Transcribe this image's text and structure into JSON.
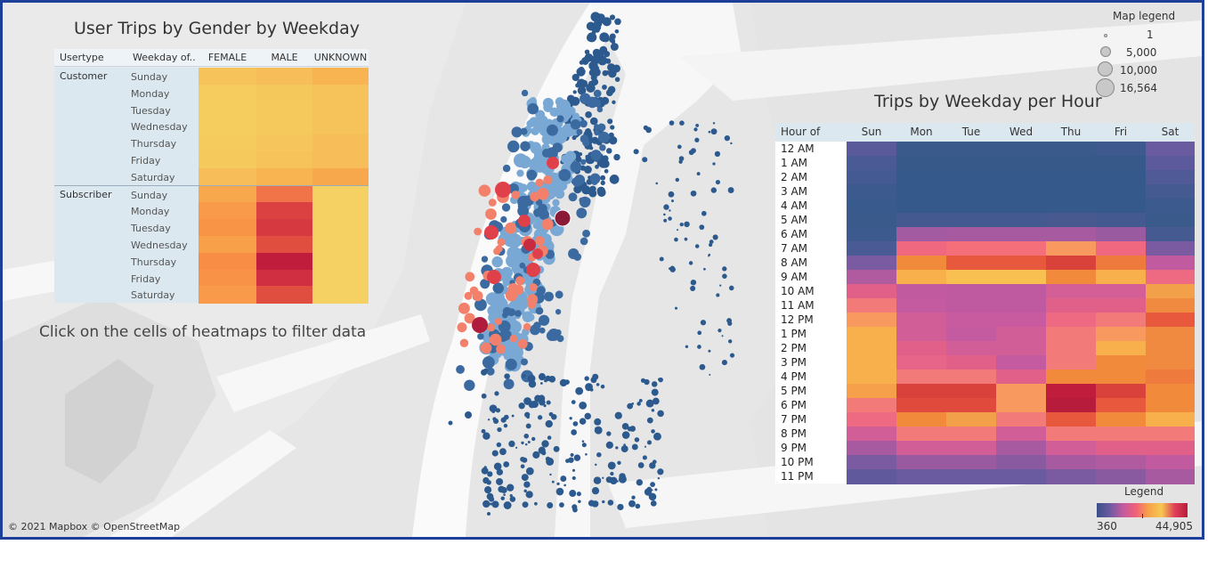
{
  "dashboard": {
    "gender_title": "User Trips by Gender by Weekday",
    "hour_title": "Trips by Weekday per Hour",
    "hint": "Click on the cells of heatmaps to filter data",
    "attribution": "© 2021 Mapbox © OpenStreetMap"
  },
  "gender_table": {
    "headers": [
      "Usertype",
      "Weekday of..",
      "FEMALE",
      "MALE",
      "UNKNOWN"
    ],
    "groups": [
      {
        "usertype": "Customer",
        "rows": [
          {
            "day": "Sunday",
            "colors": [
              "#f6c35a",
              "#f6bd58",
              "#f7b451"
            ]
          },
          {
            "day": "Monday",
            "colors": [
              "#f5cc5d",
              "#f5c85c",
              "#f6c35a"
            ]
          },
          {
            "day": "Tuesday",
            "colors": [
              "#f5cd5e",
              "#f5c95c",
              "#f6c35a"
            ]
          },
          {
            "day": "Wednesday",
            "colors": [
              "#f5cd5e",
              "#f5c95c",
              "#f6c35a"
            ]
          },
          {
            "day": "Thursday",
            "colors": [
              "#f5cb5d",
              "#f6c55b",
              "#f6bd58"
            ]
          },
          {
            "day": "Friday",
            "colors": [
              "#f5c95c",
              "#f6c35a",
              "#f6bd58"
            ]
          },
          {
            "day": "Saturday",
            "colors": [
              "#f6bd58",
              "#f7b451",
              "#f7a84d"
            ]
          }
        ]
      },
      {
        "usertype": "Subscriber",
        "rows": [
          {
            "day": "Sunday",
            "colors": [
              "#f7a84d",
              "#f07448",
              "#f5d062"
            ]
          },
          {
            "day": "Monday",
            "colors": [
              "#f89a4a",
              "#db4141",
              "#f5d062"
            ]
          },
          {
            "day": "Tuesday",
            "colors": [
              "#f89446",
              "#d63a40",
              "#f5d062"
            ]
          },
          {
            "day": "Wednesday",
            "colors": [
              "#f8a049",
              "#e04e40",
              "#f5d062"
            ]
          },
          {
            "day": "Thursday",
            "colors": [
              "#f88d46",
              "#c01c3c",
              "#f5d062"
            ]
          },
          {
            "day": "Friday",
            "colors": [
              "#f89246",
              "#cf2f40",
              "#f5d062"
            ]
          },
          {
            "day": "Saturday",
            "colors": [
              "#f89a4a",
              "#e04e40",
              "#f5d062"
            ]
          }
        ]
      }
    ]
  },
  "hour_table": {
    "headers": [
      "Hour of Sta..",
      "Sun",
      "Mon",
      "Tue",
      "Wed",
      "Thu",
      "Fri",
      "Sat"
    ],
    "rows": [
      {
        "hour": "12 AM",
        "colors": [
          "#5a5a9a",
          "#3a5a8c",
          "#3a5a8c",
          "#3a5a8c",
          "#3a5a8c",
          "#3d598e",
          "#6a5aa0"
        ]
      },
      {
        "hour": "1 AM",
        "colors": [
          "#4a5a94",
          "#36598a",
          "#36598a",
          "#36598a",
          "#36598a",
          "#36598a",
          "#5c5a9c"
        ]
      },
      {
        "hour": "2 AM",
        "colors": [
          "#445a92",
          "#35598a",
          "#35598a",
          "#35598a",
          "#35598a",
          "#35598a",
          "#505a96"
        ]
      },
      {
        "hour": "3 AM",
        "colors": [
          "#3d5a8e",
          "#35598a",
          "#35598a",
          "#35598a",
          "#35598a",
          "#35598a",
          "#465a92"
        ]
      },
      {
        "hour": "4 AM",
        "colors": [
          "#385a8c",
          "#35598a",
          "#35598a",
          "#35598a",
          "#35598a",
          "#35598a",
          "#3d5a8e"
        ]
      },
      {
        "hour": "5 AM",
        "colors": [
          "#3a5a8c",
          "#44598f",
          "#44598f",
          "#44598f",
          "#48598f",
          "#44598f",
          "#3a5a8c"
        ]
      },
      {
        "hour": "6 AM",
        "colors": [
          "#3d5a8e",
          "#a25aa0",
          "#a85aa0",
          "#a85aa0",
          "#a85aa0",
          "#9a5aa0",
          "#465a92"
        ]
      },
      {
        "hour": "7 AM",
        "colors": [
          "#4a5a94",
          "#f06880",
          "#f56f7a",
          "#f56f7a",
          "#f89a60",
          "#f06880",
          "#7a5aa0"
        ]
      },
      {
        "hour": "8 AM",
        "colors": [
          "#7a5aa0",
          "#f28a3c",
          "#e8583c",
          "#e8583c",
          "#d8423a",
          "#ee7a3e",
          "#c25aa0"
        ]
      },
      {
        "hour": "9 AM",
        "colors": [
          "#b05aa0",
          "#f7b04c",
          "#f7c050",
          "#f7c050",
          "#f28a3c",
          "#f7b04c",
          "#ee6a82"
        ]
      },
      {
        "hour": "10 AM",
        "colors": [
          "#e0608a",
          "#c25aa0",
          "#c05aa0",
          "#c05aa0",
          "#d45e96",
          "#d45e96",
          "#f2a04a"
        ]
      },
      {
        "hour": "11 AM",
        "colors": [
          "#f27a78",
          "#c45aa0",
          "#c05aa0",
          "#c05aa0",
          "#e0608a",
          "#e0608a",
          "#f08a40"
        ]
      },
      {
        "hour": "12 PM",
        "colors": [
          "#f89a60",
          "#d25e98",
          "#c85aa0",
          "#c85aa0",
          "#ee6a82",
          "#f27a78",
          "#e8583c"
        ]
      },
      {
        "hour": "1 PM",
        "colors": [
          "#f7b04c",
          "#d25e98",
          "#c45aa0",
          "#d25e98",
          "#f27a78",
          "#f89a60",
          "#f08a40"
        ]
      },
      {
        "hour": "2 PM",
        "colors": [
          "#f7b04c",
          "#e0608a",
          "#d25e98",
          "#d25e98",
          "#f27a78",
          "#f7b04c",
          "#f08a40"
        ]
      },
      {
        "hour": "3 PM",
        "colors": [
          "#f7b04c",
          "#e8658a",
          "#e0608a",
          "#c45aa0",
          "#f27a78",
          "#f28a3c",
          "#f08a40"
        ]
      },
      {
        "hour": "4 PM",
        "colors": [
          "#f7b04c",
          "#f27a78",
          "#f27a78",
          "#e0608a",
          "#f28a3c",
          "#f28a3c",
          "#ee7a3e"
        ]
      },
      {
        "hour": "5 PM",
        "colors": [
          "#f7a04c",
          "#d8423a",
          "#d8423a",
          "#f89a60",
          "#c01c3c",
          "#d8423a",
          "#f28a3c"
        ]
      },
      {
        "hour": "6 PM",
        "colors": [
          "#f27a78",
          "#e04a3c",
          "#e04a3c",
          "#f89a60",
          "#b81c3c",
          "#e8583c",
          "#f28a3c"
        ]
      },
      {
        "hour": "7 PM",
        "colors": [
          "#ee6a82",
          "#f28a3c",
          "#f2a04a",
          "#f27a78",
          "#e8583c",
          "#f28a3c",
          "#f7b04c"
        ]
      },
      {
        "hour": "8 PM",
        "colors": [
          "#d25e98",
          "#f27a78",
          "#f27a78",
          "#d25e98",
          "#f27a78",
          "#f27a78",
          "#f27a78"
        ]
      },
      {
        "hour": "9 PM",
        "colors": [
          "#a85aa0",
          "#d25e98",
          "#d25e98",
          "#a85aa0",
          "#d25e98",
          "#e0608a",
          "#e0608a"
        ]
      },
      {
        "hour": "10 PM",
        "colors": [
          "#7a5aa0",
          "#9a5aa0",
          "#9a5aa0",
          "#8a5aa0",
          "#a85aa0",
          "#b05aa0",
          "#c25aa0"
        ]
      },
      {
        "hour": "11 PM",
        "colors": [
          "#605a9c",
          "#6a5aa0",
          "#6a5aa0",
          "#6a5aa0",
          "#7a5aa0",
          "#8a5aa0",
          "#a85aa0"
        ]
      }
    ]
  },
  "map_legend": {
    "title": "Map legend",
    "entries": [
      "1",
      "5,000",
      "10,000",
      "16,564"
    ]
  },
  "color_legend": {
    "title": "Legend",
    "min": "360",
    "max": "44,905"
  }
}
